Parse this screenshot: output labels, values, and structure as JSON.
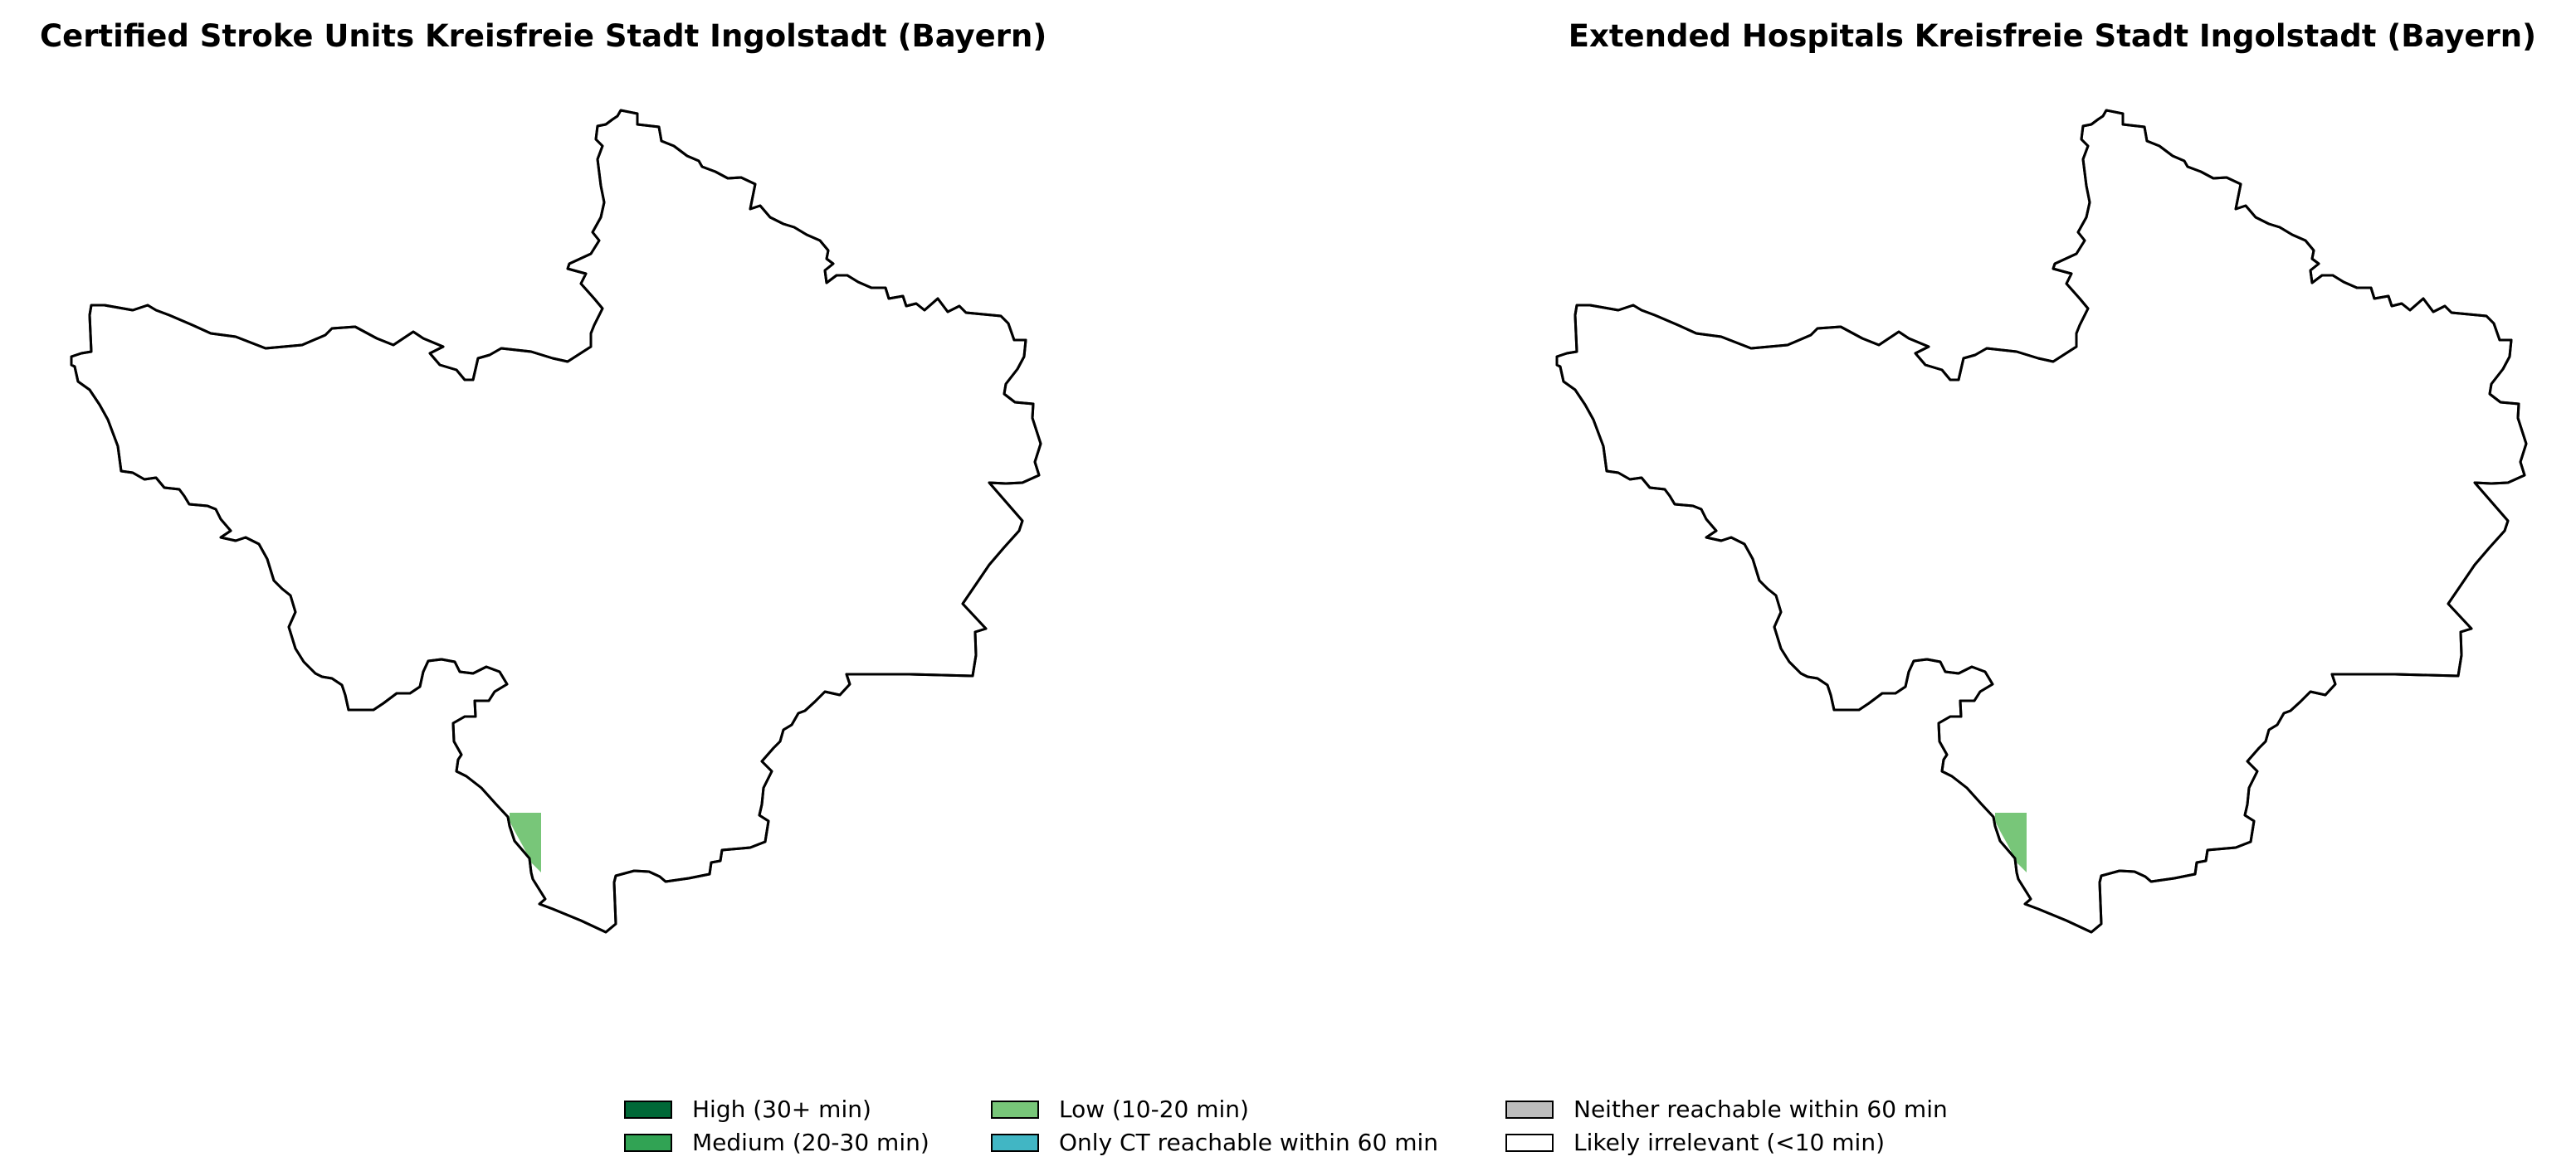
{
  "panels": [
    {
      "title": "Certified Stroke Units Kreisfreie Stadt Ingolstadt (Bayern)",
      "region": "Kreisfreie Stadt Ingolstadt (Bayern)",
      "shaded_zone_category": "Low (10-20 min)"
    },
    {
      "title": "Extended Hospitals Kreisfreie Stadt Ingolstadt (Bayern)",
      "region": "Kreisfreie Stadt Ingolstadt (Bayern)",
      "shaded_zone_category": "Low (10-20 min)"
    }
  ],
  "legend": {
    "items": [
      {
        "label": "High (30+ min)",
        "color": "#006837"
      },
      {
        "label": "Medium (20-30 min)",
        "color": "#31a354"
      },
      {
        "label": "Low (10-20 min)",
        "color": "#78c679"
      },
      {
        "label": "Only CT reachable within 60 min",
        "color": "#41b6c4"
      },
      {
        "label": "Neither reachable within 60 min",
        "color": "#bdbdbd"
      },
      {
        "label": "Likely irrelevant (<10 min)",
        "color": "#ffffff"
      }
    ]
  },
  "colors": {
    "boundary_stroke": "#000000",
    "map_fill": "#ffffff",
    "background": "#ffffff"
  }
}
